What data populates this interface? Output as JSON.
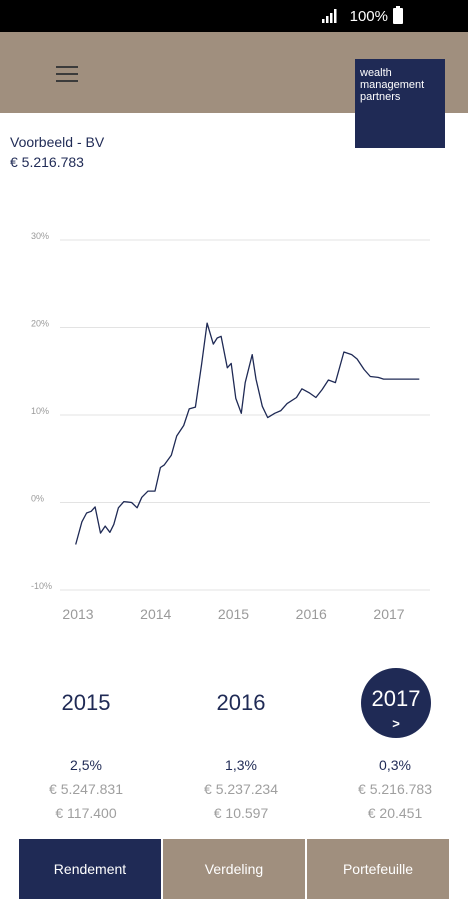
{
  "status_bar": {
    "battery": "100%"
  },
  "header": {
    "logo_lines": [
      "wealth",
      "management",
      "partners"
    ]
  },
  "account": {
    "name": "Voorbeeld - BV",
    "value": "€ 5.216.783"
  },
  "chart_data": {
    "type": "line",
    "title": "",
    "xlabel": "",
    "ylabel": "",
    "ylim": [
      -10,
      30
    ],
    "y_ticks": [
      "30%",
      "20%",
      "10%",
      "0%",
      "-10%"
    ],
    "x_ticks": [
      "2013",
      "2014",
      "2015",
      "2016",
      "2017"
    ],
    "grid": true,
    "series": [
      {
        "color": "#1f2a55",
        "x": [
          2012.97,
          2013.05,
          2013.11,
          2013.17,
          2013.22,
          2013.29,
          2013.35,
          2013.41,
          2013.46,
          2013.52,
          2013.59,
          2013.69,
          2013.76,
          2013.82,
          2013.9,
          2013.99,
          2014.06,
          2014.11,
          2014.2,
          2014.27,
          2014.36,
          2014.43,
          2014.51,
          2014.59,
          2014.66,
          2014.74,
          2014.79,
          2014.84,
          2014.92,
          2014.97,
          2015.03,
          2015.1,
          2015.15,
          2015.24,
          2015.29,
          2015.37,
          2015.44,
          2015.53,
          2015.61,
          2015.69,
          2015.81,
          2015.88,
          2015.98,
          2016.06,
          2016.14,
          2016.22,
          2016.31,
          2016.42,
          2016.52,
          2016.59,
          2016.68,
          2016.76,
          2016.86,
          2016.93,
          2016.98,
          2017.07,
          2017.14,
          2017.22,
          2017.29,
          2017.39
        ],
        "y": [
          -4.8,
          -2.2,
          -1.2,
          -1.0,
          -0.5,
          -3.5,
          -2.7,
          -3.4,
          -2.5,
          -0.6,
          0.1,
          0.0,
          -0.6,
          0.6,
          1.3,
          1.3,
          4.0,
          4.3,
          5.4,
          7.6,
          8.8,
          10.7,
          10.9,
          15.8,
          20.5,
          18.1,
          18.8,
          19.0,
          15.4,
          15.9,
          11.9,
          10.2,
          13.7,
          16.9,
          14.1,
          11.0,
          9.7,
          10.2,
          10.5,
          11.3,
          12.0,
          13.0,
          12.5,
          12.0,
          12.9,
          14.0,
          13.7,
          17.2,
          16.9,
          16.4,
          15.2,
          14.4,
          14.3,
          14.1,
          14.1,
          14.1,
          14.1,
          14.1,
          14.1,
          14.1
        ]
      }
    ]
  },
  "years": [
    {
      "year": "2015",
      "rendement": "2,5%",
      "value": "€ 5.247.831",
      "change": "€ 117.400"
    },
    {
      "year": "2016",
      "rendement": "1,3%",
      "value": "€ 5.237.234",
      "change": "€ 10.597"
    },
    {
      "year": "2017",
      "arrow": ">",
      "rendement": "0,3%",
      "value": "€ 5.216.783",
      "change": "€ 20.451"
    }
  ],
  "tabs": [
    {
      "label": "Rendement",
      "color": "#1f2a55"
    },
    {
      "label": "Verdeling",
      "color": "#a08f7e"
    },
    {
      "label": "Portefeuille",
      "color": "#a08f7e"
    }
  ]
}
